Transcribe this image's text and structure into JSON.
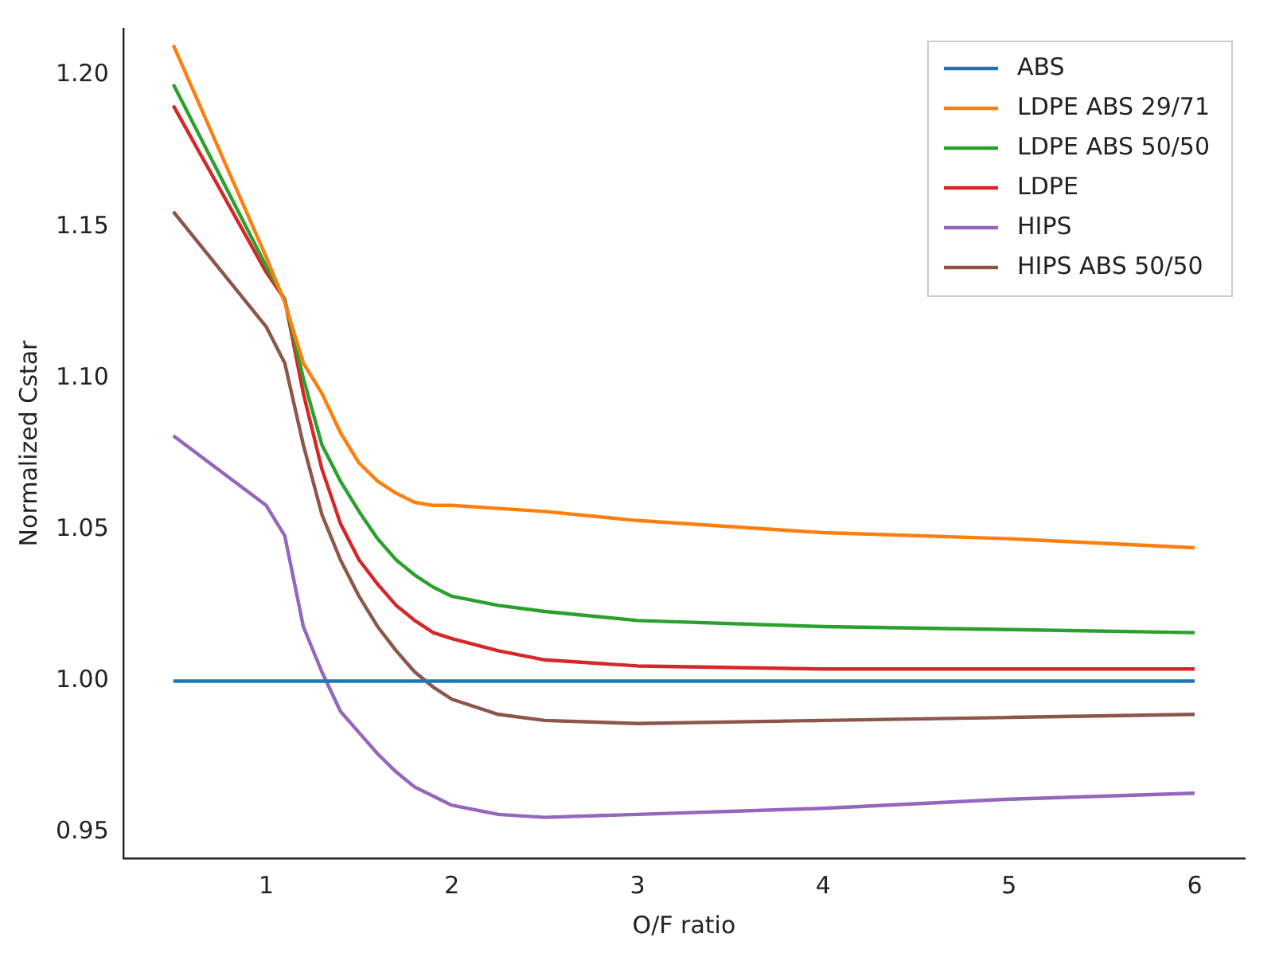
{
  "chart_data": {
    "type": "line",
    "xlabel": "O/F ratio",
    "ylabel": "Normalized Cstar",
    "x": [
      0.5,
      1.0,
      1.1,
      1.2,
      1.3,
      1.4,
      1.5,
      1.6,
      1.7,
      1.8,
      1.9,
      2.0,
      2.25,
      2.5,
      3,
      4,
      5,
      6
    ],
    "series": [
      {
        "name": "ABS",
        "color": "#1f77b4",
        "values": [
          1.0,
          1.0,
          1.0,
          1.0,
          1.0,
          1.0,
          1.0,
          1.0,
          1.0,
          1.0,
          1.0,
          1.0,
          1.0,
          1.0,
          1.0,
          1.0,
          1.0,
          1.0
        ]
      },
      {
        "name": "LDPE ABS 29/71",
        "color": "#ff7f0e",
        "values": [
          1.21,
          1.14,
          1.125,
          1.105,
          1.095,
          1.082,
          1.072,
          1.066,
          1.062,
          1.059,
          1.058,
          1.058,
          1.057,
          1.056,
          1.053,
          1.049,
          1.047,
          1.044
        ]
      },
      {
        "name": "LDPE ABS 50/50",
        "color": "#2ca02c",
        "values": [
          1.197,
          1.137,
          1.126,
          1.1,
          1.078,
          1.066,
          1.056,
          1.047,
          1.04,
          1.035,
          1.031,
          1.028,
          1.025,
          1.023,
          1.02,
          1.018,
          1.017,
          1.016
        ]
      },
      {
        "name": "LDPE",
        "color": "#d62728",
        "values": [
          1.19,
          1.135,
          1.126,
          1.095,
          1.07,
          1.052,
          1.04,
          1.032,
          1.025,
          1.02,
          1.016,
          1.014,
          1.01,
          1.007,
          1.005,
          1.004,
          1.004,
          1.004
        ]
      },
      {
        "name": "HIPS",
        "color": "#9467bd",
        "values": [
          1.081,
          1.058,
          1.048,
          1.018,
          1.003,
          0.99,
          0.983,
          0.976,
          0.97,
          0.965,
          0.962,
          0.959,
          0.956,
          0.955,
          0.956,
          0.958,
          0.961,
          0.963
        ]
      },
      {
        "name": "HIPS ABS 50/50",
        "color": "#8c564b",
        "values": [
          1.155,
          1.117,
          1.105,
          1.078,
          1.055,
          1.04,
          1.028,
          1.018,
          1.01,
          1.003,
          0.998,
          0.994,
          0.989,
          0.987,
          0.986,
          0.987,
          0.988,
          0.989
        ]
      }
    ],
    "xlim": [
      0.23,
      6.27
    ],
    "xticks": [
      1,
      2,
      3,
      4,
      5,
      6
    ],
    "ylim": [
      0.9415,
      1.2154
    ],
    "yticks": [
      {
        "value": 0.95,
        "label": "0.95"
      },
      {
        "value": 1.0,
        "label": "1.00"
      },
      {
        "value": 1.05,
        "label": "1.05"
      },
      {
        "value": 1.1,
        "label": "1.10"
      },
      {
        "value": 1.15,
        "label": "1.15"
      },
      {
        "value": 1.2,
        "label": "1.20"
      }
    ],
    "grid": false,
    "legend": "top right",
    "marker": "none",
    "line_style": "solid"
  }
}
